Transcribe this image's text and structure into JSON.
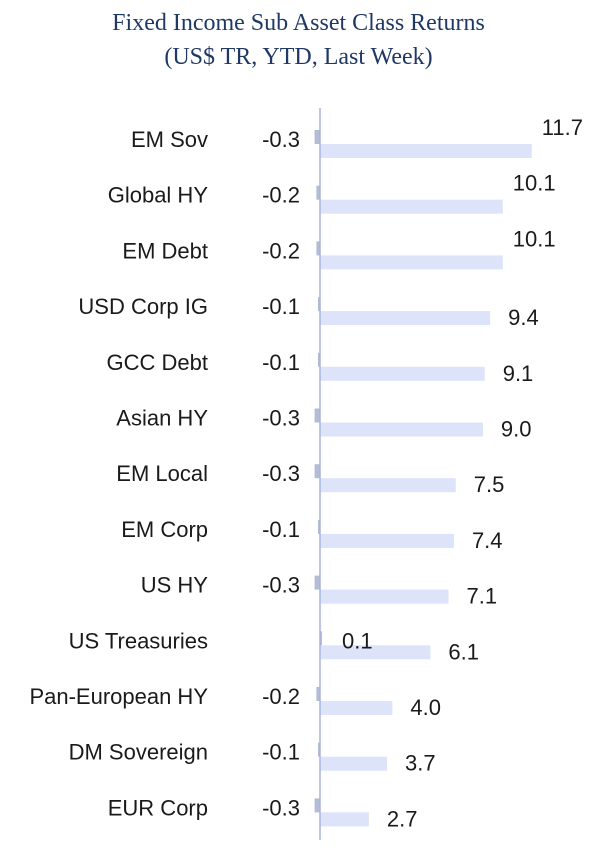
{
  "chart_data": {
    "type": "bar",
    "orientation": "horizontal",
    "title": "Fixed Income Sub Asset Class Returns",
    "subtitle": "(US$ TR, YTD, Last Week)",
    "categories": [
      "EM Sov",
      "Global HY",
      "EM Debt",
      "USD Corp IG",
      "GCC Debt",
      "Asian HY",
      "EM Local",
      "EM Corp",
      "US HY",
      "US Treasuries",
      "Pan-European HY",
      "DM Sovereign",
      "EUR Corp"
    ],
    "series": [
      {
        "values": [
          11.7,
          10.1,
          10.1,
          9.4,
          9.1,
          9.0,
          7.5,
          7.4,
          7.1,
          6.1,
          4.0,
          3.7,
          2.7
        ]
      },
      {
        "values": [
          -0.3,
          -0.2,
          -0.2,
          -0.1,
          -0.1,
          -0.3,
          -0.3,
          -0.1,
          -0.3,
          0.1,
          -0.2,
          -0.1,
          -0.3
        ]
      }
    ],
    "ytd_labels": [
      "11.7",
      "10.1",
      "10.1",
      "9.4",
      "9.1",
      "9.0",
      "7.5",
      "7.4",
      "7.1",
      "6.1",
      "4.0",
      "3.7",
      "2.7"
    ],
    "week_labels": [
      "-0.3",
      "-0.2",
      "-0.2",
      "-0.1",
      "-0.1",
      "-0.3",
      "-0.3",
      "-0.1",
      "-0.3",
      "0.1",
      "-0.2",
      "-0.1",
      "-0.3"
    ],
    "colors": {
      "ytd": "#dde3f8",
      "week": "#b4bdd6",
      "axis": "#a9b4de",
      "title": "#1f3864"
    },
    "legend": "none",
    "grid": false
  }
}
